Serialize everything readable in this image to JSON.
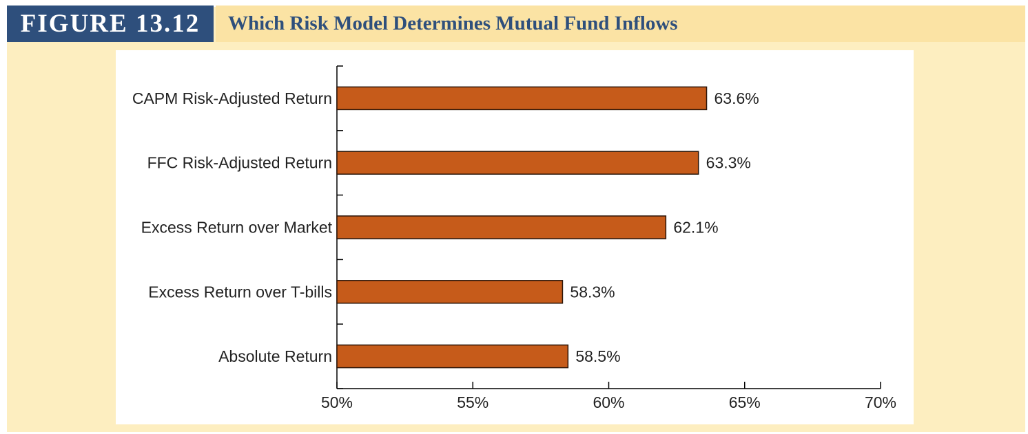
{
  "figure": {
    "label": "FIGURE 13.12",
    "title": "Which Risk Model Determines Mutual Fund Inflows"
  },
  "colors": {
    "bar_fill": "#c65b1a",
    "bar_stroke": "#2a1408",
    "label_bg": "#2e4f7c",
    "title_color": "#2e4f7c",
    "figure_bg": "#fdeec0"
  },
  "chart_data": {
    "type": "bar",
    "orientation": "horizontal",
    "title": "",
    "xlabel": "",
    "ylabel": "",
    "categories": [
      "CAPM Risk-Adjusted Return",
      "FFC Risk-Adjusted Return",
      "Excess Return over Market",
      "Excess Return over T-bills",
      "Absolute Return"
    ],
    "values": [
      63.6,
      63.3,
      62.1,
      58.3,
      58.5
    ],
    "value_labels": [
      "63.6%",
      "63.3%",
      "62.1%",
      "58.3%",
      "58.5%"
    ],
    "xlim": [
      50,
      70
    ],
    "x_ticks": [
      50,
      55,
      60,
      65,
      70
    ],
    "x_tick_labels": [
      "50%",
      "55%",
      "60%",
      "65%",
      "70%"
    ],
    "grid": false,
    "legend": "none"
  }
}
